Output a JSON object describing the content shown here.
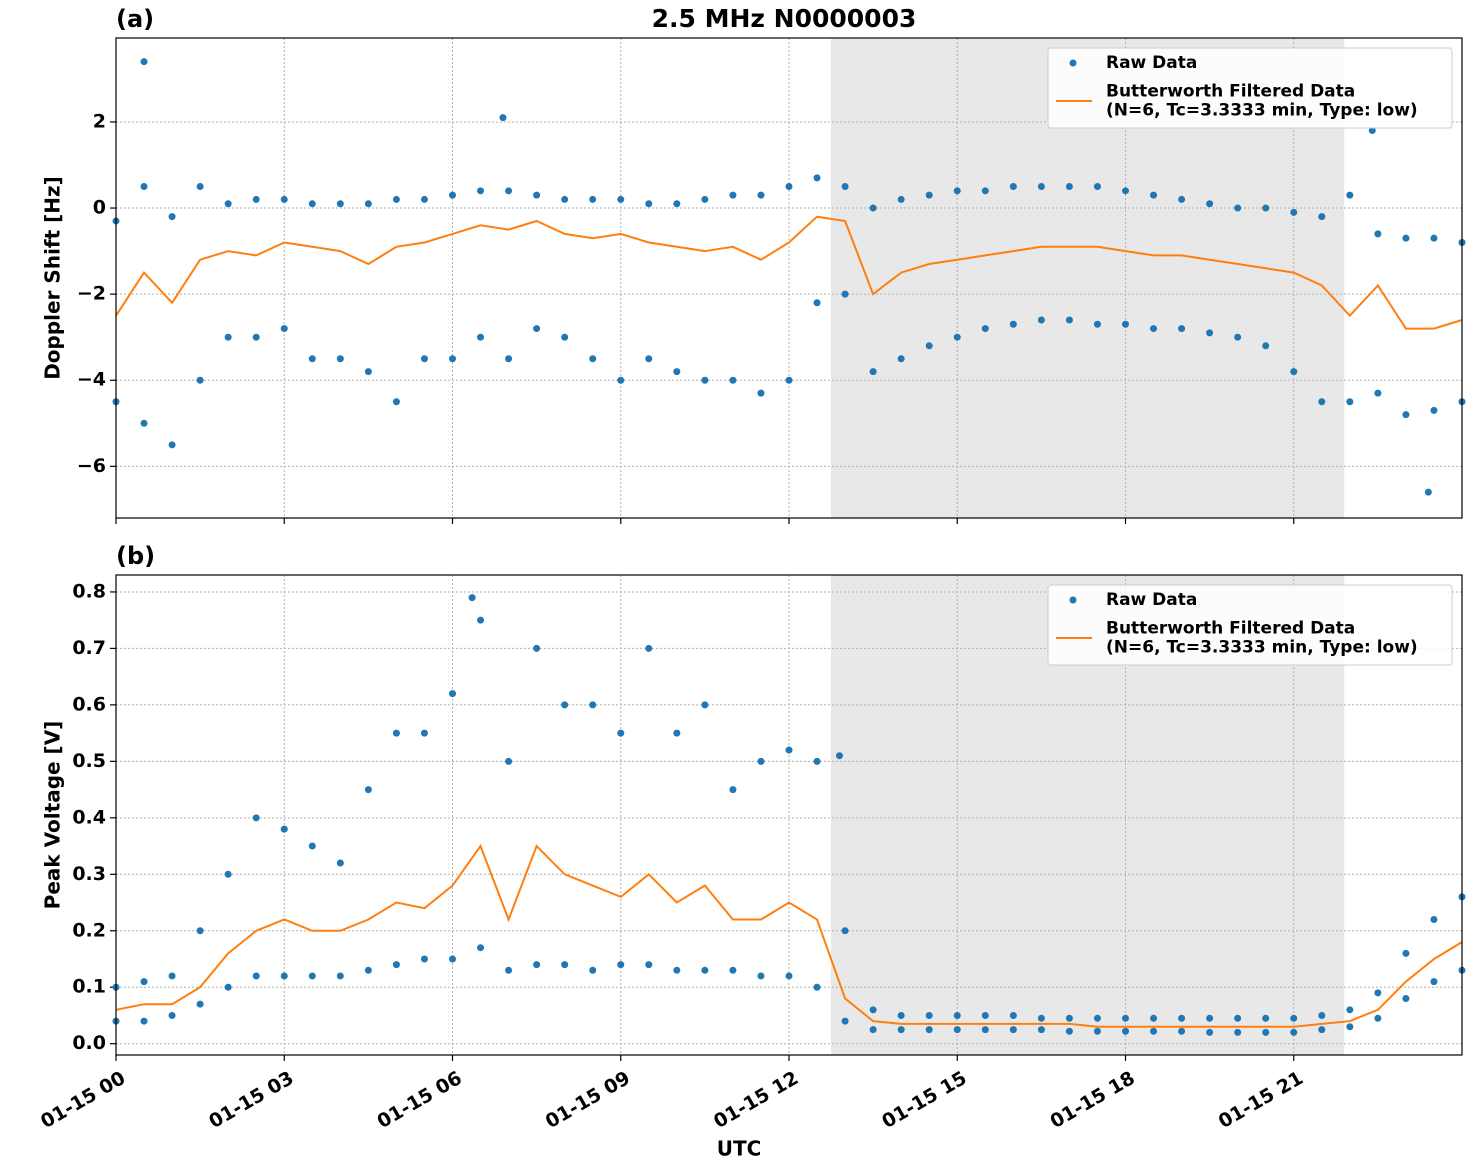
{
  "chart_data": [
    {
      "type": "scatter",
      "panel_label": "(a)",
      "title": "2.5 MHz N0000003",
      "ylabel": "Doppler Shift [Hz]",
      "xlim": [
        0,
        24
      ],
      "xticks": [
        0,
        3,
        6,
        9,
        12,
        15,
        18,
        21
      ],
      "ylim": [
        -7.2,
        3.95
      ],
      "yticks": [
        {
          "value": -6,
          "label": "−6"
        },
        {
          "value": -4,
          "label": "−4"
        },
        {
          "value": -2,
          "label": "−2"
        },
        0,
        2
      ],
      "grid": true,
      "legend": "upper right",
      "shaded_span": [
        12.75,
        21.9
      ],
      "series": [
        {
          "name": "Raw Data",
          "type": "scatter",
          "color": "#1f77b4",
          "x": [
            0,
            0,
            0.5,
            0.5,
            1,
            1,
            1.5,
            1.5,
            2,
            2,
            2.5,
            2.5,
            3,
            3,
            3.5,
            3.5,
            4,
            4,
            4.5,
            4.5,
            5,
            5,
            5.5,
            5.5,
            6,
            6,
            6.5,
            6.5,
            7,
            7,
            7.5,
            7.5,
            8,
            8,
            8.5,
            8.5,
            9,
            9,
            9.5,
            9.5,
            10,
            10,
            10.5,
            10.5,
            11,
            11,
            11.5,
            11.5,
            12,
            12,
            12.5,
            12.5,
            13,
            13,
            13.5,
            13.5,
            14,
            14,
            14.5,
            14.5,
            15,
            15,
            15.5,
            15.5,
            16,
            16,
            16.5,
            16.5,
            17,
            17,
            17.5,
            17.5,
            18,
            18,
            18.5,
            18.5,
            19,
            19,
            19.5,
            19.5,
            20,
            20,
            20.5,
            20.5,
            21,
            21,
            21.5,
            21.5,
            22,
            22,
            22.5,
            22.5,
            23,
            23,
            23.5,
            23.5,
            24,
            24,
            0.5,
            6.9,
            22.4,
            23.4
          ],
          "values": [
            -0.3,
            -4.5,
            0.5,
            -5.0,
            -0.2,
            -5.5,
            0.5,
            -4.0,
            0.1,
            -3.0,
            0.2,
            -3.0,
            0.2,
            -2.8,
            0.1,
            -3.5,
            0.1,
            -3.5,
            0.1,
            -3.8,
            0.2,
            -4.5,
            0.2,
            -3.5,
            0.3,
            -3.5,
            0.4,
            -3.0,
            0.4,
            -3.5,
            0.3,
            -2.8,
            0.2,
            -3.0,
            0.2,
            -3.5,
            0.2,
            -4.0,
            0.1,
            -3.5,
            0.1,
            -3.8,
            0.2,
            -4.0,
            0.3,
            -4.0,
            0.3,
            -4.3,
            0.5,
            -4.0,
            0.7,
            -2.2,
            0.5,
            -2.0,
            0.0,
            -3.8,
            0.2,
            -3.5,
            0.3,
            -3.2,
            0.4,
            -3.0,
            0.4,
            -2.8,
            0.5,
            -2.7,
            0.5,
            -2.6,
            0.5,
            -2.6,
            0.5,
            -2.7,
            0.4,
            -2.7,
            0.3,
            -2.8,
            0.2,
            -2.8,
            0.1,
            -2.9,
            0.0,
            -3.0,
            0.0,
            -3.2,
            -0.1,
            -3.8,
            -0.2,
            -4.5,
            0.3,
            -4.5,
            -0.6,
            -4.3,
            -0.7,
            -4.8,
            -0.7,
            -4.7,
            -0.8,
            -4.5,
            3.4,
            2.1,
            1.8,
            -6.6
          ]
        },
        {
          "name": "Butterworth Filtered Data\n(N=6, Tc=3.3333 min, Type: low)",
          "type": "line",
          "color": "#ff7f0e",
          "x": [
            0,
            0.5,
            1,
            1.5,
            2,
            2.5,
            3,
            3.5,
            4,
            4.5,
            5,
            5.5,
            6,
            6.5,
            7,
            7.5,
            8,
            8.5,
            9,
            9.5,
            10,
            10.5,
            11,
            11.5,
            12,
            12.5,
            13,
            13.5,
            14,
            14.5,
            15,
            15.5,
            16,
            16.5,
            17,
            17.5,
            18,
            18.5,
            19,
            19.5,
            20,
            20.5,
            21,
            21.5,
            22,
            22.5,
            23,
            23.5,
            24
          ],
          "values": [
            -2.5,
            -1.5,
            -2.2,
            -1.2,
            -1.0,
            -1.1,
            -0.8,
            -0.9,
            -1.0,
            -1.3,
            -0.9,
            -0.8,
            -0.6,
            -0.4,
            -0.5,
            -0.3,
            -0.6,
            -0.7,
            -0.6,
            -0.8,
            -0.9,
            -1.0,
            -0.9,
            -1.2,
            -0.8,
            -0.2,
            -0.3,
            -2.0,
            -1.5,
            -1.3,
            -1.2,
            -1.1,
            -1.0,
            -0.9,
            -0.9,
            -0.9,
            -1.0,
            -1.1,
            -1.1,
            -1.2,
            -1.3,
            -1.4,
            -1.5,
            -1.8,
            -2.5,
            -1.8,
            -2.8,
            -2.8,
            -2.6
          ]
        }
      ]
    },
    {
      "type": "scatter",
      "panel_label": "(b)",
      "ylabel": "Peak Voltage [V]",
      "xlabel": "UTC",
      "xlim": [
        0,
        24
      ],
      "xticks": [
        {
          "value": 0,
          "label": "01-15 00"
        },
        {
          "value": 3,
          "label": "01-15 03"
        },
        {
          "value": 6,
          "label": "01-15 06"
        },
        {
          "value": 9,
          "label": "01-15 09"
        },
        {
          "value": 12,
          "label": "01-15 12"
        },
        {
          "value": 15,
          "label": "01-15 15"
        },
        {
          "value": 18,
          "label": "01-15 18"
        },
        {
          "value": 21,
          "label": "01-15 21"
        }
      ],
      "ylim": [
        -0.02,
        0.83
      ],
      "yticks": [
        {
          "value": 0,
          "label": "0.0"
        },
        0.1,
        0.2,
        0.3,
        0.4,
        0.5,
        0.6,
        0.7,
        0.8
      ],
      "grid": true,
      "legend": "upper right",
      "shaded_span": [
        12.75,
        21.9
      ],
      "series": [
        {
          "name": "Raw Data",
          "type": "scatter",
          "color": "#1f77b4",
          "x": [
            0,
            0,
            0.5,
            0.5,
            1,
            1,
            1.5,
            1.5,
            2,
            2,
            2.5,
            2.5,
            3,
            3,
            3.5,
            3.5,
            4,
            4,
            4.5,
            4.5,
            5,
            5,
            5.5,
            5.5,
            6,
            6,
            6.5,
            6.5,
            7,
            7,
            7.5,
            7.5,
            8,
            8,
            8.5,
            8.5,
            9,
            9,
            9.5,
            9.5,
            10,
            10,
            10.5,
            10.5,
            11,
            11,
            11.5,
            11.5,
            12,
            12,
            12.5,
            12.5,
            13,
            13,
            13.5,
            13.5,
            14,
            14,
            14.5,
            14.5,
            15,
            15,
            15.5,
            15.5,
            16,
            16,
            16.5,
            16.5,
            17,
            17,
            17.5,
            17.5,
            18,
            18,
            18.5,
            18.5,
            19,
            19,
            19.5,
            19.5,
            20,
            20,
            20.5,
            20.5,
            21,
            21,
            21.5,
            21.5,
            22,
            22,
            22.5,
            22.5,
            23,
            23,
            23.5,
            23.5,
            24,
            24,
            6.35,
            12.9
          ],
          "values": [
            0.1,
            0.04,
            0.11,
            0.04,
            0.12,
            0.05,
            0.2,
            0.07,
            0.3,
            0.1,
            0.4,
            0.12,
            0.38,
            0.12,
            0.35,
            0.12,
            0.32,
            0.12,
            0.45,
            0.13,
            0.55,
            0.14,
            0.55,
            0.15,
            0.62,
            0.15,
            0.75,
            0.17,
            0.5,
            0.13,
            0.7,
            0.14,
            0.6,
            0.14,
            0.6,
            0.13,
            0.55,
            0.14,
            0.7,
            0.14,
            0.55,
            0.13,
            0.6,
            0.13,
            0.45,
            0.13,
            0.5,
            0.12,
            0.52,
            0.12,
            0.5,
            0.1,
            0.2,
            0.04,
            0.06,
            0.025,
            0.05,
            0.025,
            0.05,
            0.025,
            0.05,
            0.025,
            0.05,
            0.025,
            0.05,
            0.025,
            0.045,
            0.025,
            0.045,
            0.022,
            0.045,
            0.022,
            0.045,
            0.022,
            0.045,
            0.022,
            0.045,
            0.022,
            0.045,
            0.02,
            0.045,
            0.02,
            0.045,
            0.02,
            0.045,
            0.02,
            0.05,
            0.025,
            0.06,
            0.03,
            0.09,
            0.045,
            0.16,
            0.08,
            0.22,
            0.11,
            0.26,
            0.13,
            0.79,
            0.51
          ]
        },
        {
          "name": "Butterworth Filtered Data\n(N=6, Tc=3.3333 min, Type: low)",
          "type": "line",
          "color": "#ff7f0e",
          "x": [
            0,
            0.5,
            1,
            1.5,
            2,
            2.5,
            3,
            3.5,
            4,
            4.5,
            5,
            5.5,
            6,
            6.5,
            7,
            7.5,
            8,
            8.5,
            9,
            9.5,
            10,
            10.5,
            11,
            11.5,
            12,
            12.5,
            13,
            13.5,
            14,
            14.5,
            15,
            15.5,
            16,
            16.5,
            17,
            17.5,
            18,
            18.5,
            19,
            19.5,
            20,
            20.5,
            21,
            21.5,
            22,
            22.5,
            23,
            23.5,
            24
          ],
          "values": [
            0.06,
            0.07,
            0.07,
            0.1,
            0.16,
            0.2,
            0.22,
            0.2,
            0.2,
            0.22,
            0.25,
            0.24,
            0.28,
            0.35,
            0.22,
            0.35,
            0.3,
            0.28,
            0.26,
            0.3,
            0.25,
            0.28,
            0.22,
            0.22,
            0.25,
            0.22,
            0.08,
            0.04,
            0.035,
            0.035,
            0.035,
            0.035,
            0.035,
            0.035,
            0.035,
            0.03,
            0.03,
            0.03,
            0.03,
            0.03,
            0.03,
            0.03,
            0.03,
            0.035,
            0.04,
            0.06,
            0.11,
            0.15,
            0.18
          ]
        }
      ]
    }
  ]
}
